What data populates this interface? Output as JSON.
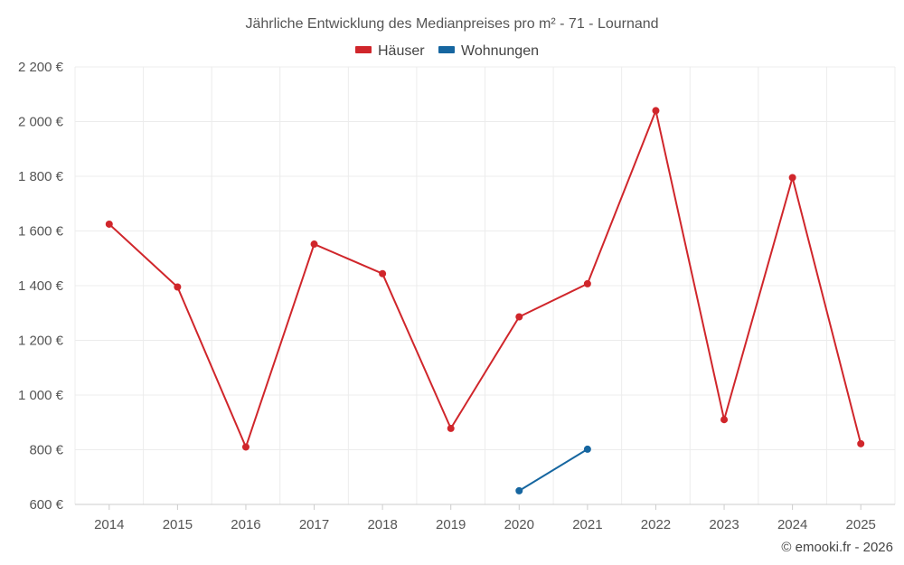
{
  "chart_data": {
    "type": "line",
    "title": "Jährliche Entwicklung des Medianpreises pro m² - 71 - Lournand",
    "categories": [
      "2014",
      "2015",
      "2016",
      "2017",
      "2018",
      "2019",
      "2020",
      "2021",
      "2022",
      "2023",
      "2024",
      "2025"
    ],
    "y_ticks": [
      "600 €",
      "800 €",
      "1 000 €",
      "1 200 €",
      "1 400 €",
      "1 600 €",
      "1 800 €",
      "2 000 €",
      "2 200 €"
    ],
    "ylim": [
      600,
      2200
    ],
    "grid": true,
    "legend_position": "top-center",
    "series": [
      {
        "name": "Häuser",
        "color": "#d0262b",
        "values": [
          1625,
          1395,
          810,
          1552,
          1444,
          878,
          1286,
          1407,
          2040,
          910,
          1795,
          822
        ]
      },
      {
        "name": "Wohnungen",
        "color": "#1666a0",
        "values": [
          null,
          null,
          null,
          null,
          null,
          null,
          650,
          802,
          null,
          null,
          null,
          null
        ]
      }
    ],
    "credit": "© emooki.fr - 2026"
  }
}
